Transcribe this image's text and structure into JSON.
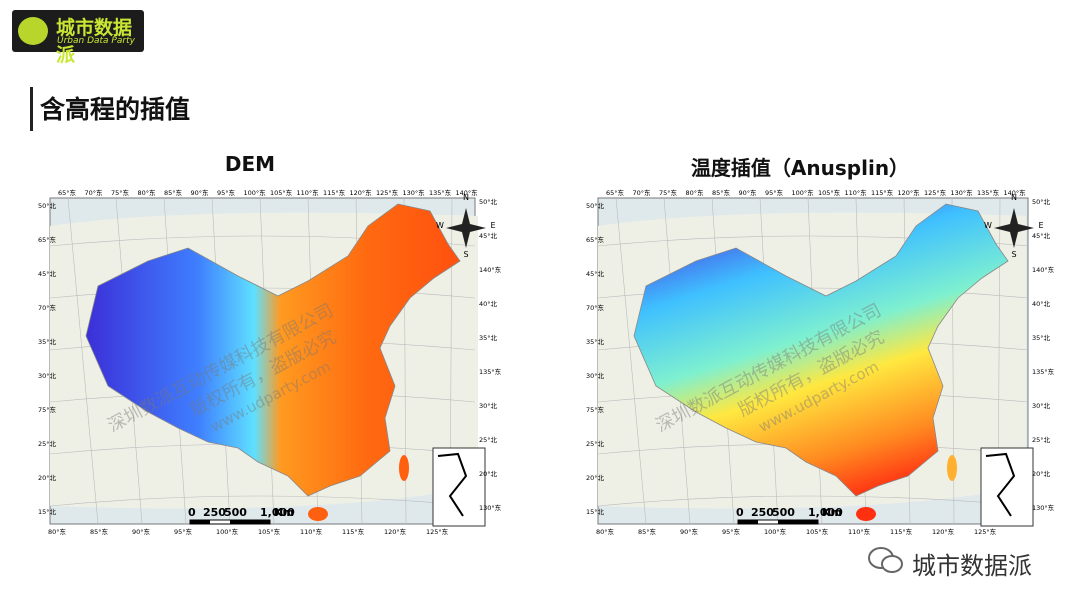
{
  "logo": {
    "name": "城市数据派",
    "subtitle": "Urban Data Party"
  },
  "header": {
    "title": "含高程的插值"
  },
  "panels": [
    {
      "title": "DEM",
      "scale_labels": [
        "0",
        "250",
        "500",
        "1,000",
        "Km"
      ]
    },
    {
      "title": "温度插值（Anusplin）",
      "scale_labels": [
        "0",
        "250",
        "500",
        "1,000",
        "Km"
      ]
    }
  ],
  "graticule": {
    "top": [
      "65°东",
      "70°东",
      "75°东",
      "80°东",
      "85°东",
      "90°东",
      "95°东",
      "100°东",
      "105°东",
      "110°东",
      "115°东",
      "120°东",
      "125°东",
      "130°东",
      "135°东",
      "140°东"
    ],
    "bottom": [
      "80°东",
      "85°东",
      "90°东",
      "95°东",
      "100°东",
      "105°东",
      "110°东",
      "115°东",
      "120°东",
      "125°东"
    ],
    "left": [
      "50°北",
      "65°东",
      "45°北",
      "70°东",
      "35°北",
      "30°北",
      "75°东",
      "25°北",
      "20°北",
      "15°北"
    ],
    "right": [
      "50°北",
      "45°北",
      "140°东",
      "40°北",
      "35°北",
      "135°东",
      "30°北",
      "25°北",
      "20°北",
      "130°东"
    ],
    "compass": [
      "N",
      "E",
      "S",
      "W"
    ]
  },
  "watermark": {
    "company": "深圳数派互动传媒科技有限公司",
    "rights": "版权所有，盗版必究",
    "url": "www.udparty.com"
  },
  "footer": {
    "brand": "城市数据派"
  }
}
